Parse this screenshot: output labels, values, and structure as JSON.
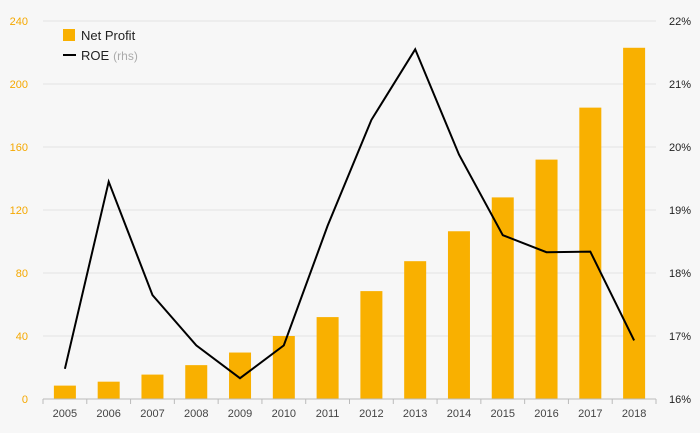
{
  "chart_data": {
    "type": "bar",
    "categories": [
      "2005",
      "2006",
      "2007",
      "2008",
      "2009",
      "2010",
      "2011",
      "2012",
      "2013",
      "2014",
      "2015",
      "2016",
      "2017",
      "2018"
    ],
    "series": [
      {
        "name": "Net Profit",
        "type": "bar",
        "axis": "left",
        "color": "#f9b000",
        "values": [
          8.5,
          11,
          15.5,
          21.5,
          29.5,
          40,
          52,
          68.5,
          87.5,
          106.5,
          128,
          152,
          185,
          223
        ]
      },
      {
        "name": "ROE",
        "name_suffix": "(rhs)",
        "type": "line",
        "axis": "right",
        "color": "#000000",
        "values": [
          16.48,
          19.45,
          17.65,
          16.85,
          16.33,
          16.85,
          18.75,
          20.43,
          21.55,
          19.88,
          18.6,
          18.33,
          18.34,
          16.93
        ]
      }
    ],
    "ylim_left": [
      0,
      240
    ],
    "yticks_left": [
      "0",
      "40",
      "80",
      "120",
      "160",
      "200",
      "240"
    ],
    "ylim_right": [
      16,
      22
    ],
    "yticks_right": [
      "16%",
      "17%",
      "18%",
      "19%",
      "20%",
      "21%",
      "22%"
    ],
    "grid": true,
    "legend_position": "top-left",
    "title": "",
    "xlabel": "",
    "ylabel": ""
  }
}
